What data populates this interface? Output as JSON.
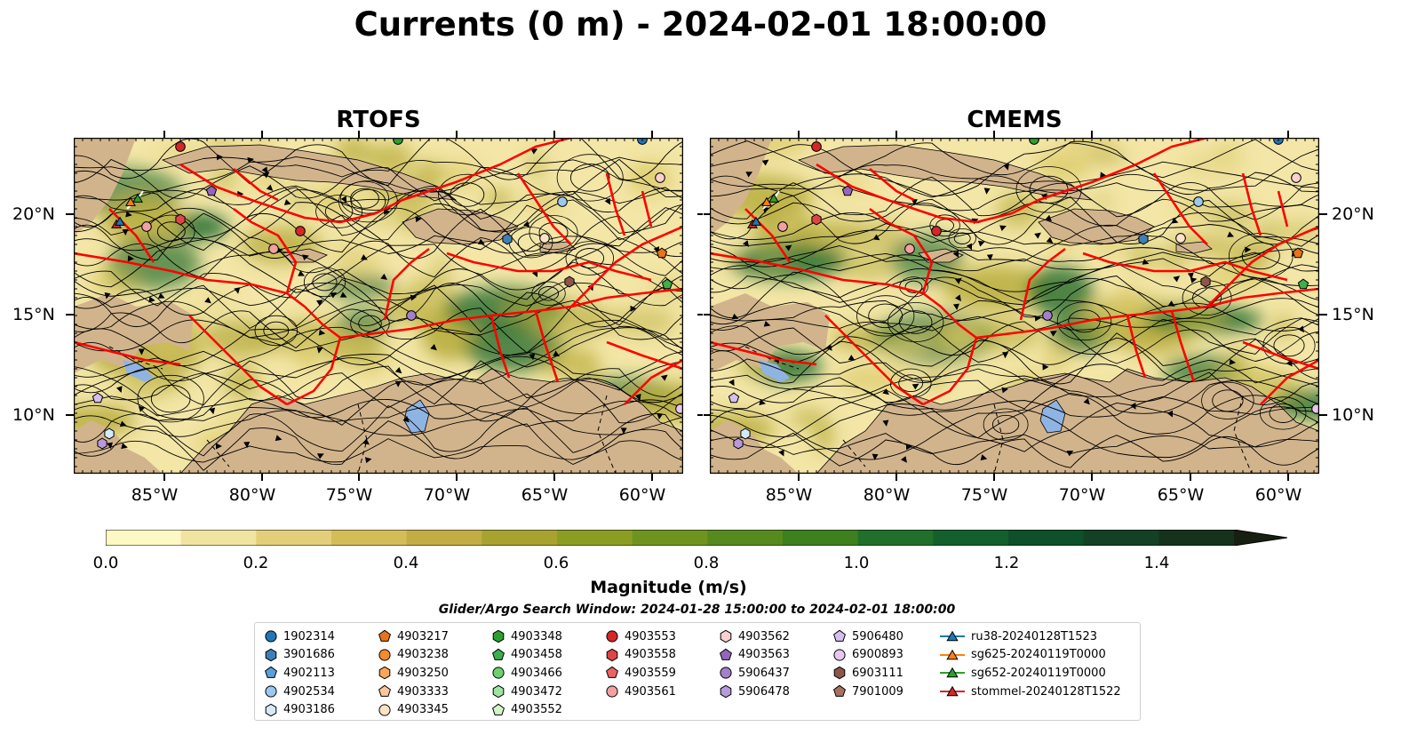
{
  "title": "Currents (0 m) - 2024-02-01 18:00:00",
  "panels": [
    {
      "name": "RTOFS"
    },
    {
      "name": "CMEMS"
    }
  ],
  "lat_ticks": [
    "20°N",
    "15°N",
    "10°N"
  ],
  "lon_ticks": [
    "85°W",
    "80°W",
    "75°W",
    "70°W",
    "65°W",
    "60°W"
  ],
  "colorbar": {
    "label": "Magnitude (m/s)",
    "ticks": [
      "0.0",
      "0.2",
      "0.4",
      "0.6",
      "0.8",
      "1.0",
      "1.2",
      "1.4"
    ],
    "colors": [
      "#fdf8c4",
      "#f1e3a0",
      "#e3cf7a",
      "#d3bd59",
      "#c2ad44",
      "#a8a32f",
      "#8c9e22",
      "#6e941f",
      "#568a1f",
      "#3e7f1f",
      "#216f2a",
      "#13602d",
      "#0e5029",
      "#144024",
      "#15331c",
      "#171f10"
    ]
  },
  "search_window": "Glider/Argo Search Window: 2024-01-28 15:00:00 to 2024-02-01 18:00:00",
  "legend": [
    [
      {
        "label": "1902314",
        "marker": "circle",
        "color": "#1f77b4"
      },
      {
        "label": "3901686",
        "marker": "hexagon",
        "color": "#3f7fb8"
      },
      {
        "label": "4902113",
        "marker": "pentagon",
        "color": "#5aa0d8"
      },
      {
        "label": "4902534",
        "marker": "circle",
        "color": "#9cc8ec"
      },
      {
        "label": "4903186",
        "marker": "hexagon",
        "color": "#d4eafa"
      }
    ],
    [
      {
        "label": "4903217",
        "marker": "pentagon",
        "color": "#e8731a"
      },
      {
        "label": "4903238",
        "marker": "circle",
        "color": "#f28c2c"
      },
      {
        "label": "4903250",
        "marker": "hexagon",
        "color": "#f9a65a"
      },
      {
        "label": "4903333",
        "marker": "pentagon",
        "color": "#fbc999"
      },
      {
        "label": "4903345",
        "marker": "circle",
        "color": "#fde3c6"
      }
    ],
    [
      {
        "label": "4903348",
        "marker": "hexagon",
        "color": "#2ca02c"
      },
      {
        "label": "4903458",
        "marker": "pentagon",
        "color": "#3fae4c"
      },
      {
        "label": "4903466",
        "marker": "circle",
        "color": "#6fcf6f"
      },
      {
        "label": "4903472",
        "marker": "hexagon",
        "color": "#a0e3a0"
      },
      {
        "label": "4903552",
        "marker": "pentagon",
        "color": "#d2f5c8"
      }
    ],
    [
      {
        "label": "4903553",
        "marker": "circle",
        "color": "#d62728"
      },
      {
        "label": "4903558",
        "marker": "hexagon",
        "color": "#e04545"
      },
      {
        "label": "4903559",
        "marker": "pentagon",
        "color": "#ea6464"
      },
      {
        "label": "4903561",
        "marker": "circle",
        "color": "#f4a0a0"
      }
    ],
    [
      {
        "label": "4903562",
        "marker": "hexagon",
        "color": "#fbd0d0"
      },
      {
        "label": "4903563",
        "marker": "pentagon",
        "color": "#9467bd"
      },
      {
        "label": "5906437",
        "marker": "circle",
        "color": "#a47fcc"
      },
      {
        "label": "5906478",
        "marker": "hexagon",
        "color": "#b899dc"
      }
    ],
    [
      {
        "label": "5906480",
        "marker": "pentagon",
        "color": "#d6bff0"
      },
      {
        "label": "6900893",
        "marker": "circle",
        "color": "#e6c7f0"
      },
      {
        "label": "6903111",
        "marker": "hexagon",
        "color": "#8c564b"
      },
      {
        "label": "7901009",
        "marker": "pentagon",
        "color": "#a9705f"
      }
    ],
    [
      {
        "label": "ru38-20240128T1523",
        "marker": "triangle",
        "color": "#1f77b4"
      },
      {
        "label": "sg625-20240119T0000",
        "marker": "triangle",
        "color": "#ff7f0e"
      },
      {
        "label": "sg652-20240119T0000",
        "marker": "triangle",
        "color": "#2ca02c"
      },
      {
        "label": "stommel-20240128T1522",
        "marker": "triangle",
        "color": "#d62728"
      }
    ]
  ],
  "map_colors": {
    "land": "#d2b48c",
    "water_low": "#f3e6a6",
    "water_mid": "#b6ab3c",
    "water_high": "#1f6a2c",
    "track": "#ff0000",
    "lake": "#8fb4e3"
  }
}
